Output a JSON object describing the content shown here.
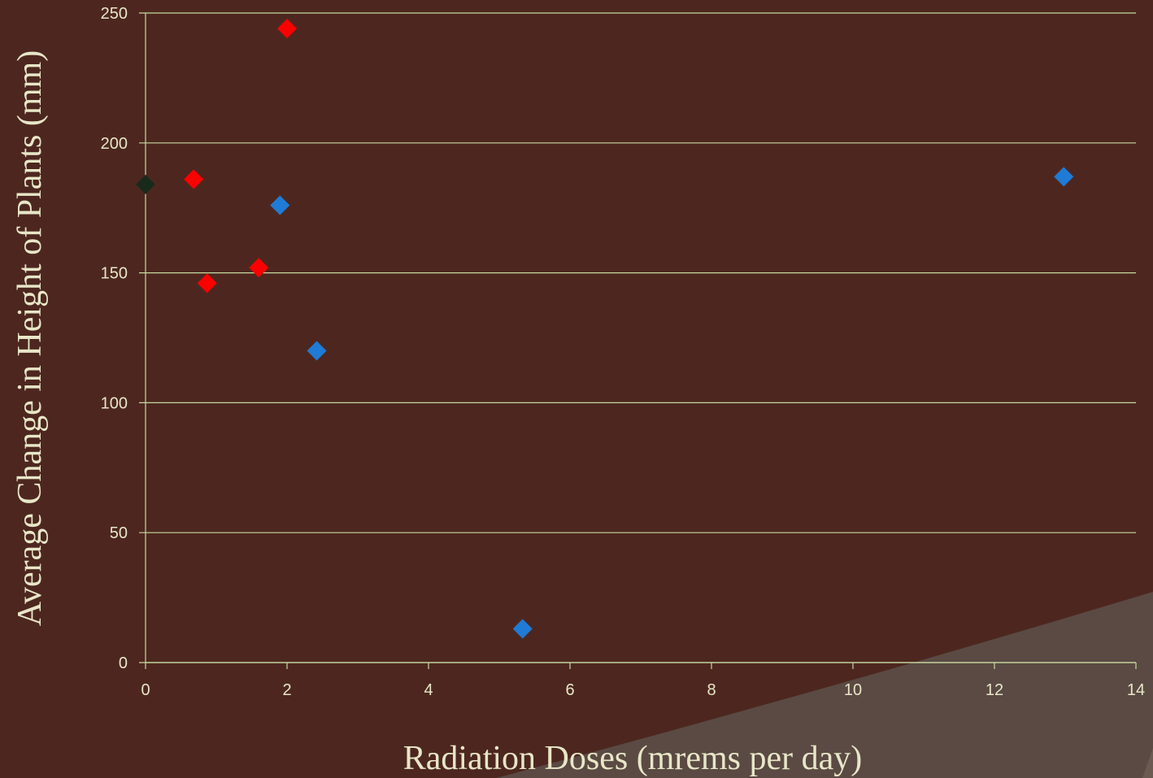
{
  "chart_data": {
    "type": "scatter",
    "title": "",
    "xlabel": "Radiation Doses (mrems per day)",
    "ylabel": "Average   Change in Height of Plants (mm)",
    "xlim": [
      0,
      14
    ],
    "ylim": [
      0,
      250
    ],
    "x_ticks": [
      "0",
      "2",
      "4",
      "6",
      "8",
      "10",
      "12",
      "14"
    ],
    "y_ticks": [
      "0",
      "50",
      "100",
      "150",
      "200",
      "250"
    ],
    "grid": "horizontal",
    "legend": "none",
    "series": [
      {
        "color": "#1a2a1a",
        "points": [
          {
            "x": 0.0,
            "y": 184
          }
        ]
      },
      {
        "color": "#ff0000",
        "points": [
          {
            "x": 0.68,
            "y": 186
          },
          {
            "x": 0.87,
            "y": 146
          },
          {
            "x": 1.6,
            "y": 152
          },
          {
            "x": 2.0,
            "y": 244
          }
        ]
      },
      {
        "color": "#1f7bd6",
        "points": [
          {
            "x": 1.9,
            "y": 176
          },
          {
            "x": 2.42,
            "y": 120
          },
          {
            "x": 5.33,
            "y": 13
          },
          {
            "x": 12.98,
            "y": 187
          }
        ]
      }
    ]
  },
  "colors": {
    "background": "#4d271f",
    "gridline": "#c8d9a0",
    "text": "#e8e6c8",
    "decor_swoosh": "#5a4a43"
  }
}
